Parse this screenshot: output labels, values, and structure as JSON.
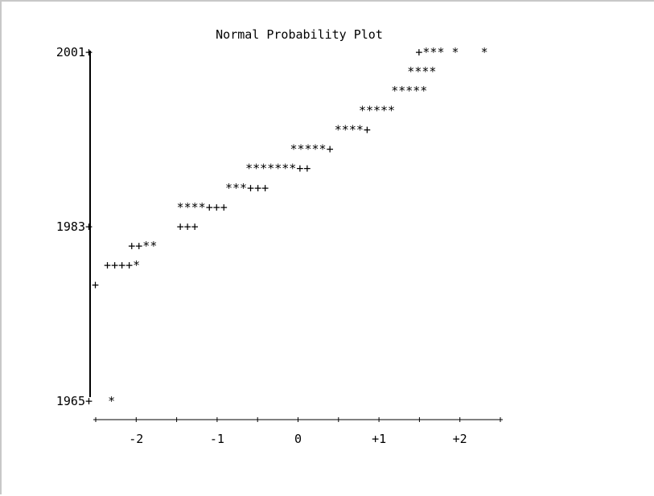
{
  "chart_data": {
    "type": "scatter",
    "title": "Normal Probability Plot",
    "xlabel": "",
    "ylabel": "",
    "xlim": [
      -2.5,
      2.5
    ],
    "ylim": [
      1965,
      2001
    ],
    "x_ticks": [
      -2.5,
      -2,
      -1.5,
      -1,
      -0.5,
      0,
      0.5,
      1,
      1.5,
      2,
      2.5
    ],
    "x_tick_labels": [
      {
        "x": -2,
        "label": "-2"
      },
      {
        "x": -1,
        "label": "-1"
      },
      {
        "x": 0,
        "label": "0"
      },
      {
        "x": 1,
        "label": "+1"
      },
      {
        "x": 2,
        "label": "+2"
      }
    ],
    "y_ticks": [
      {
        "y": 2001,
        "label": "2001"
      },
      {
        "y": 1983,
        "label": "1983"
      },
      {
        "y": 1965,
        "label": "1965"
      }
    ],
    "rows": [
      {
        "y": 2001,
        "x": 1.45,
        "glyphs": "+*** *   *"
      },
      {
        "y": 1999,
        "x": 1.35,
        "glyphs": "****"
      },
      {
        "y": 1997,
        "x": 1.15,
        "glyphs": "*****"
      },
      {
        "y": 1995,
        "x": 0.75,
        "glyphs": "*****"
      },
      {
        "y": 1993,
        "x": 0.45,
        "glyphs": "****+"
      },
      {
        "y": 1991,
        "x": -0.1,
        "glyphs": "*****+"
      },
      {
        "y": 1989,
        "x": -0.65,
        "glyphs": "*******++"
      },
      {
        "y": 1987,
        "x": -0.9,
        "glyphs": "***+++"
      },
      {
        "y": 1985,
        "x": -1.5,
        "glyphs": "****+++"
      },
      {
        "y": 1983,
        "x": -1.5,
        "glyphs": "+++"
      },
      {
        "y": 1981,
        "x": -2.1,
        "glyphs": "++**"
      },
      {
        "y": 1979,
        "x": -2.4,
        "glyphs": "++++*"
      },
      {
        "y": 1977,
        "x": -2.55,
        "glyphs": "+"
      },
      {
        "y": 1965,
        "x": -2.35,
        "glyphs": "*"
      }
    ],
    "grid": false,
    "colors": {
      "text": "#000000",
      "axis": "#000000",
      "frame": "#c8c8c8"
    }
  }
}
